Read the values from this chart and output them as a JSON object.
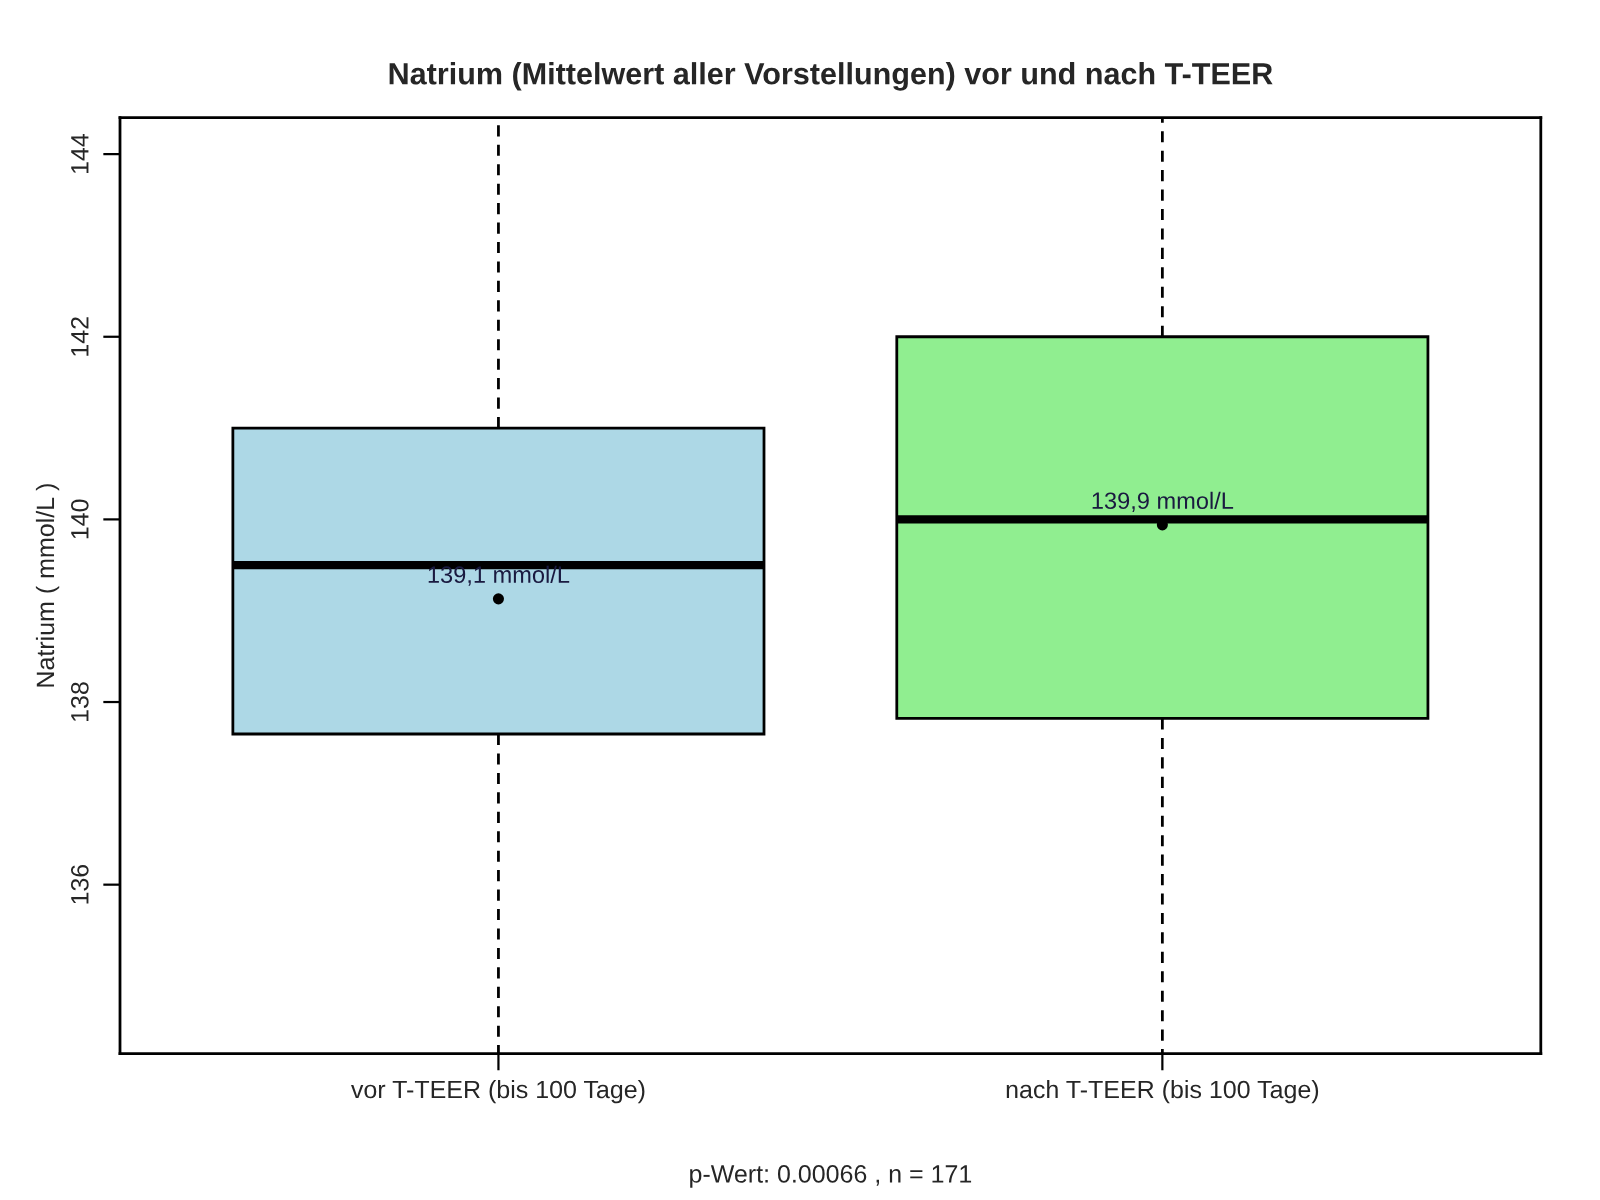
{
  "chart_data": {
    "type": "box",
    "title": "Natrium (Mittelwert aller Vorstellungen) vor und nach T-TEER",
    "xlabel": "p-Wert: 0.00066 , n = 171",
    "ylabel": "Natrium ( mmol/L )",
    "categories": [
      "vor T-TEER (bis 100 Tage)",
      "nach T-TEER (bis 100 Tage)"
    ],
    "colors": [
      "#add8e6",
      "#90ee90"
    ],
    "boxes": [
      {
        "low": 134.15,
        "q1": 137.65,
        "median": 139.5,
        "q3": 141.0,
        "high": 144.4,
        "mean": 139.13
      },
      {
        "low": 134.15,
        "q1": 137.82,
        "median": 140.0,
        "q3": 142.0,
        "high": 144.4,
        "mean": 139.94
      }
    ],
    "annotations": [
      "139,1 mmol/L",
      "139,9 mmol/L"
    ],
    "ylim": [
      134.15,
      144.4
    ],
    "yticks": [
      136,
      138,
      140,
      142,
      144
    ],
    "grid": false,
    "line_style": "dashed",
    "marker": "circle"
  }
}
